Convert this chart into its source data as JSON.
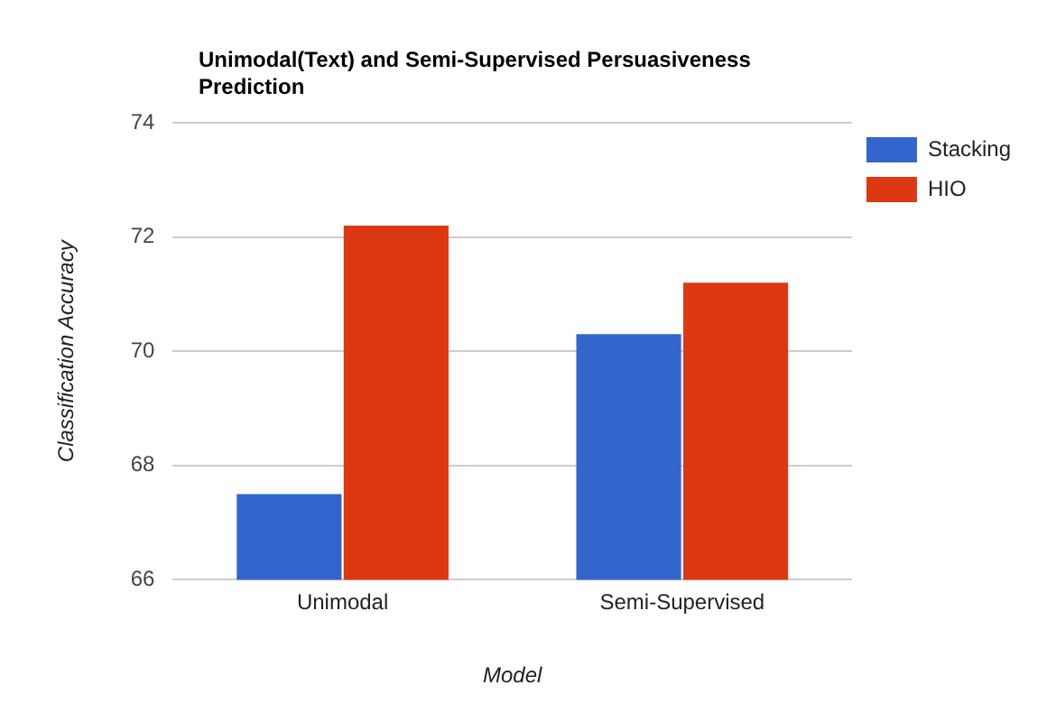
{
  "chart_data": {
    "type": "bar",
    "title": "Unimodal(Text) and Semi-Supervised Persuasiveness Prediction",
    "xlabel": "Model",
    "ylabel": "Classification Accuracy",
    "categories": [
      "Unimodal",
      "Semi-Supervised"
    ],
    "series": [
      {
        "name": "Stacking",
        "color": "#3366cc",
        "values": [
          67.5,
          70.3
        ]
      },
      {
        "name": "HIO",
        "color": "#dc3912",
        "values": [
          72.2,
          71.2
        ]
      }
    ],
    "ylim": [
      66,
      74
    ],
    "yticks": [
      66,
      68,
      70,
      72,
      74
    ],
    "grid": "y",
    "legend": "top right"
  }
}
